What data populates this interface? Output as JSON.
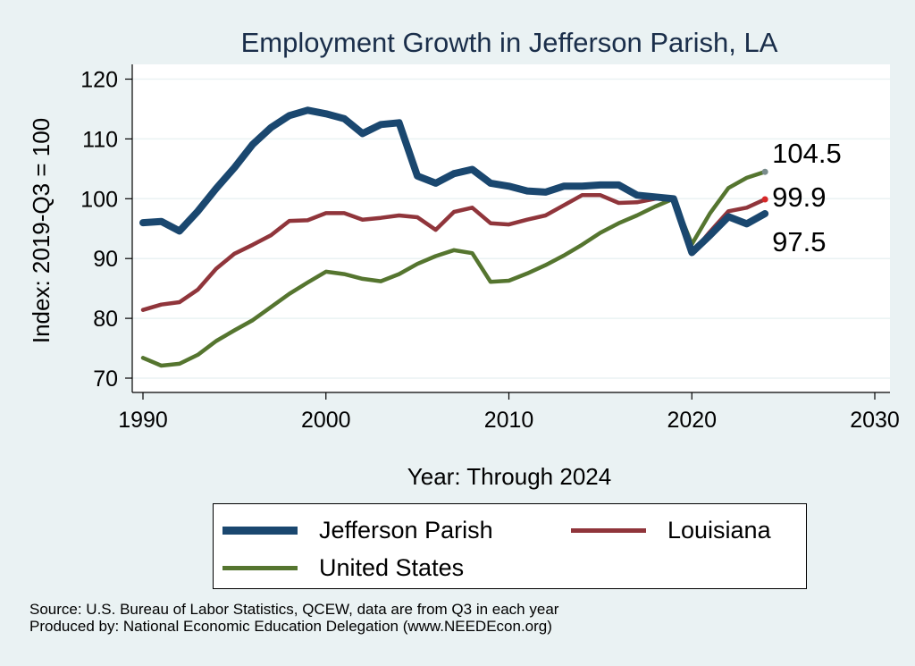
{
  "chart_data": {
    "type": "line",
    "title": "Employment Growth in Jefferson Parish, LA",
    "xlabel": "Year: Through 2024",
    "ylabel": "Index: 2019-Q3 = 100",
    "xlim": [
      1990,
      2030
    ],
    "ylim": [
      68,
      122
    ],
    "xticks": [
      1990,
      2000,
      2010,
      2020,
      2030
    ],
    "yticks": [
      70,
      80,
      90,
      100,
      110,
      120
    ],
    "grid": true,
    "legend_position": "bottom",
    "x": [
      1990,
      1991,
      1992,
      1993,
      1994,
      1995,
      1996,
      1997,
      1998,
      1999,
      2000,
      2001,
      2002,
      2003,
      2004,
      2005,
      2006,
      2007,
      2008,
      2009,
      2010,
      2011,
      2012,
      2013,
      2014,
      2015,
      2016,
      2017,
      2018,
      2019,
      2020,
      2021,
      2022,
      2023,
      2024
    ],
    "series": [
      {
        "name": "Jefferson Parish",
        "color": "#1a476f",
        "width": 8,
        "values": [
          96.0,
          96.2,
          94.6,
          97.9,
          101.7,
          105.2,
          109.1,
          111.9,
          113.9,
          114.8,
          114.2,
          113.4,
          110.9,
          112.4,
          112.7,
          103.8,
          102.6,
          104.2,
          104.9,
          102.6,
          102.1,
          101.3,
          101.1,
          102.1,
          102.1,
          102.3,
          102.3,
          100.6,
          100.3,
          100.0,
          91.0,
          93.9,
          97.0,
          95.8,
          97.5
        ],
        "end_label": "97.5"
      },
      {
        "name": "Louisiana",
        "color": "#90353b",
        "width": 4.5,
        "values": [
          81.4,
          82.3,
          82.7,
          84.8,
          88.3,
          90.8,
          92.3,
          93.9,
          96.3,
          96.4,
          97.6,
          97.6,
          96.5,
          96.8,
          97.2,
          96.9,
          94.8,
          97.8,
          98.5,
          95.9,
          95.7,
          96.5,
          97.2,
          98.9,
          100.6,
          100.6,
          99.3,
          99.4,
          100.0,
          100.0,
          90.9,
          94.5,
          97.9,
          98.5,
          99.9
        ],
        "end_label": "99.9"
      },
      {
        "name": "United States",
        "color": "#55752f",
        "width": 4.5,
        "values": [
          73.4,
          72.1,
          72.4,
          73.9,
          76.2,
          78.0,
          79.7,
          81.9,
          84.1,
          86.0,
          87.8,
          87.4,
          86.6,
          86.2,
          87.4,
          89.1,
          90.4,
          91.4,
          90.9,
          86.1,
          86.3,
          87.5,
          88.9,
          90.5,
          92.3,
          94.3,
          95.9,
          97.2,
          98.7,
          100.0,
          92.4,
          97.6,
          101.8,
          103.5,
          104.5
        ],
        "end_label": "104.5"
      }
    ],
    "end_marker_colors": [
      "#1a476f",
      "#d62728",
      "#7a8c8c"
    ]
  },
  "legend": {
    "items": [
      {
        "label": "Jefferson Parish",
        "color": "#1a476f"
      },
      {
        "label": "Louisiana",
        "color": "#90353b"
      },
      {
        "label": "United States",
        "color": "#55752f"
      }
    ]
  },
  "footer": {
    "source": "Source: U.S. Bureau of Labor Statistics, QCEW, data are from Q3 in each year",
    "produced_by": "Produced by: National Economic Education Delegation (www.NEEDEcon.org)"
  }
}
